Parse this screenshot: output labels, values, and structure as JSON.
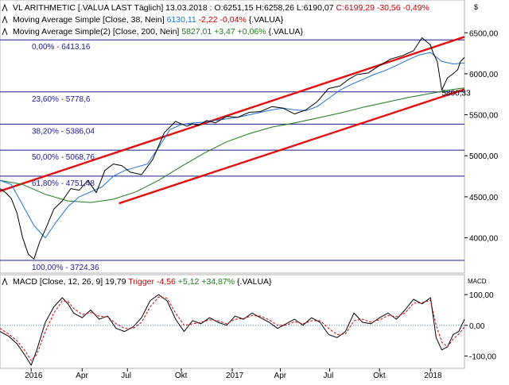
{
  "header": {
    "currency_symbol": "$"
  },
  "chart_data": [
    {
      "type": "line",
      "panel": "price",
      "legend": [
        {
          "name": "VL ARITHMETIC [.VALUA LAST Täglich] 13.03.2018 :",
          "segments": [
            {
              "text": "VL ARITHMETIC [.VALUA LAST Täglich] 13.03.2018 : ",
              "color": "#000000"
            },
            {
              "text": "O:6251,15",
              "color": "#000000"
            },
            {
              "text": " H:6258,26",
              "color": "#000000"
            },
            {
              "text": " L:6190,07",
              "color": "#000000"
            },
            {
              "text": " C:6199,29",
              "color": "#cc0000"
            },
            {
              "text": " -30,56",
              "color": "#cc0000"
            },
            {
              "text": " -0,49%",
              "color": "#cc0000"
            }
          ]
        },
        {
          "name": "Moving Average Simple [Close, 38, Nein]",
          "segments": [
            {
              "text": "Moving Average Simple [Close, 38, Nein] ",
              "color": "#000000"
            },
            {
              "text": "6130,11",
              "color": "#1e6fd9"
            },
            {
              "text": " -2,22",
              "color": "#cc0000"
            },
            {
              "text": " -0,04%",
              "color": "#cc0000"
            },
            {
              "text": " {.VALUA}",
              "color": "#000000"
            }
          ]
        },
        {
          "name": "Moving Average Simple(2) [Close, 200, Nein]",
          "segments": [
            {
              "text": "Moving Average Simple(2) [Close, 200, Nein] ",
              "color": "#000000"
            },
            {
              "text": "5827,01",
              "color": "#1a7a1a"
            },
            {
              "text": " +3,47",
              "color": "#1a7a1a"
            },
            {
              "text": " +0,06%",
              "color": "#1a7a1a"
            },
            {
              "text": " {.VALUA}",
              "color": "#000000"
            }
          ]
        }
      ],
      "y_ticks": [
        "6500,00",
        "6000,00",
        "5500,00",
        "5000,00",
        "4500,00",
        "4000,00"
      ],
      "y_tick_values": [
        6500,
        6000,
        5500,
        5000,
        4500,
        4000
      ],
      "ylim": [
        3570,
        6880
      ],
      "x_range": [
        0,
        820
      ],
      "fibonacci_levels": [
        {
          "label": "0,00% - 6413,16",
          "value": 6413.16
        },
        {
          "label": "23,60% - 5778,6",
          "value": 5778.6
        },
        {
          "label": "38,20% - 5386,04",
          "value": 5386.04
        },
        {
          "label": "50,00% - 5068,76",
          "value": 5068.76
        },
        {
          "label": "61,80% - 4751,48",
          "value": 4751.48
        },
        {
          "label": "100,00% - 3724,36",
          "value": 3724.36
        }
      ],
      "channel_lines": [
        {
          "x1": 0,
          "y1": 4570,
          "x2": 820,
          "y2": 6450
        },
        {
          "x1": 210,
          "y1": 4420,
          "x2": 820,
          "y2": 5810
        }
      ],
      "annotation": {
        "text": "5800,33",
        "x": 780,
        "y": 5760
      },
      "close_series": {
        "x": [
          0,
          10,
          20,
          30,
          40,
          50,
          60,
          70,
          80,
          95,
          110,
          125,
          140,
          155,
          170,
          185,
          200,
          215,
          230,
          250,
          270,
          290,
          310,
          330,
          340,
          350,
          365,
          380,
          400,
          420,
          440,
          460,
          480,
          500,
          520,
          540,
          560,
          580,
          600,
          615,
          630,
          650,
          670,
          690,
          710,
          730,
          745,
          760,
          765,
          772,
          780,
          790,
          800,
          808,
          813,
          820
        ],
        "values": [
          4600,
          4550,
          4480,
          4300,
          4000,
          3800,
          3740,
          3950,
          4100,
          4350,
          4450,
          4600,
          4580,
          4700,
          4550,
          4820,
          4900,
          4880,
          4800,
          4770,
          4960,
          5280,
          5420,
          5360,
          5390,
          5370,
          5430,
          5400,
          5480,
          5470,
          5530,
          5540,
          5600,
          5580,
          5510,
          5560,
          5660,
          5820,
          5850,
          5930,
          5990,
          6010,
          6100,
          6180,
          6220,
          6280,
          6440,
          6350,
          6250,
          6150,
          5800,
          5950,
          6000,
          6050,
          6150,
          6199
        ]
      },
      "ma38_series": {
        "x": [
          0,
          20,
          40,
          60,
          80,
          100,
          120,
          140,
          160,
          180,
          200,
          220,
          240,
          260,
          280,
          300,
          320,
          340,
          360,
          380,
          400,
          420,
          440,
          460,
          480,
          500,
          520,
          540,
          560,
          580,
          600,
          620,
          640,
          660,
          680,
          700,
          720,
          740,
          760,
          780,
          800,
          820
        ],
        "values": [
          4700,
          4650,
          4400,
          4150,
          4000,
          4200,
          4380,
          4500,
          4560,
          4620,
          4750,
          4820,
          4860,
          4900,
          5100,
          5320,
          5380,
          5400,
          5410,
          5430,
          5450,
          5470,
          5500,
          5530,
          5560,
          5580,
          5560,
          5550,
          5600,
          5700,
          5800,
          5870,
          5930,
          5990,
          6040,
          6100,
          6170,
          6230,
          6260,
          6150,
          6120,
          6130
        ]
      },
      "ma200_series": {
        "x": [
          0,
          40,
          80,
          120,
          160,
          200,
          240,
          280,
          320,
          360,
          400,
          440,
          480,
          520,
          560,
          600,
          640,
          680,
          720,
          760,
          800,
          820
        ],
        "values": [
          4700,
          4650,
          4530,
          4450,
          4430,
          4470,
          4560,
          4700,
          4870,
          5030,
          5170,
          5270,
          5350,
          5400,
          5460,
          5520,
          5590,
          5650,
          5710,
          5760,
          5810,
          5827
        ]
      }
    },
    {
      "type": "line",
      "panel": "macd",
      "legend_segments": [
        {
          "text": "MACD [Close, 12, 26, 9] ",
          "color": "#000000"
        },
        {
          "text": "19,79",
          "color": "#000000"
        },
        {
          "text": " Trigger",
          "color": "#cc0000"
        },
        {
          "text": " -4,56",
          "color": "#cc0000"
        },
        {
          "text": " +5,12",
          "color": "#1a7a1a"
        },
        {
          "text": " +34,87%",
          "color": "#1a7a1a"
        },
        {
          "text": " {.VALUA}",
          "color": "#000000"
        }
      ],
      "label": "MACD",
      "y_ticks": [
        "100,00",
        "0,00",
        "-100,00"
      ],
      "y_tick_values": [
        100,
        0,
        -100
      ],
      "ylim": [
        -140,
        165
      ],
      "x_range": [
        0,
        820
      ],
      "x_tick_labels": [
        "2016",
        "Apr",
        "Jul",
        "Okt",
        "2017",
        "Apr",
        "Jul",
        "Okt",
        "2018"
      ],
      "x_tick_positions": [
        55,
        145,
        225,
        320,
        410,
        495,
        582,
        670,
        760
      ],
      "macd_series": {
        "x": [
          0,
          15,
          30,
          45,
          55,
          65,
          80,
          95,
          110,
          120,
          130,
          145,
          160,
          175,
          190,
          205,
          220,
          235,
          250,
          265,
          280,
          295,
          310,
          325,
          340,
          355,
          370,
          385,
          400,
          415,
          430,
          445,
          460,
          475,
          490,
          505,
          520,
          535,
          550,
          565,
          580,
          595,
          610,
          625,
          640,
          655,
          670,
          685,
          700,
          715,
          730,
          745,
          760,
          770,
          780,
          790,
          800,
          810,
          820
        ],
        "values": [
          -20,
          -35,
          -60,
          -100,
          -130,
          -80,
          10,
          60,
          90,
          70,
          40,
          25,
          50,
          20,
          30,
          -10,
          -20,
          -5,
          25,
          80,
          100,
          80,
          20,
          -20,
          15,
          5,
          25,
          10,
          0,
          30,
          20,
          40,
          25,
          10,
          -10,
          5,
          20,
          0,
          25,
          10,
          -30,
          -40,
          -20,
          40,
          10,
          5,
          25,
          40,
          20,
          50,
          85,
          70,
          90,
          -40,
          -80,
          -70,
          -30,
          -20,
          20
        ]
      },
      "trigger_series": {
        "x": [
          0,
          15,
          30,
          45,
          55,
          65,
          80,
          95,
          110,
          120,
          130,
          145,
          160,
          175,
          190,
          205,
          220,
          235,
          250,
          265,
          280,
          295,
          310,
          325,
          340,
          355,
          370,
          385,
          400,
          415,
          430,
          445,
          460,
          475,
          490,
          505,
          520,
          535,
          550,
          565,
          580,
          595,
          610,
          625,
          640,
          655,
          670,
          685,
          700,
          715,
          730,
          745,
          760,
          770,
          780,
          790,
          800,
          810,
          820
        ],
        "values": [
          -10,
          -28,
          -50,
          -85,
          -115,
          -95,
          -20,
          40,
          80,
          78,
          55,
          35,
          42,
          30,
          28,
          5,
          -10,
          -10,
          10,
          60,
          92,
          88,
          40,
          0,
          5,
          10,
          18,
          15,
          5,
          20,
          22,
          32,
          30,
          18,
          0,
          0,
          12,
          5,
          15,
          15,
          -10,
          -30,
          -28,
          15,
          20,
          10,
          18,
          32,
          28,
          40,
          72,
          74,
          82,
          0,
          -55,
          -70,
          -45,
          -28,
          -5
        ]
      }
    }
  ]
}
